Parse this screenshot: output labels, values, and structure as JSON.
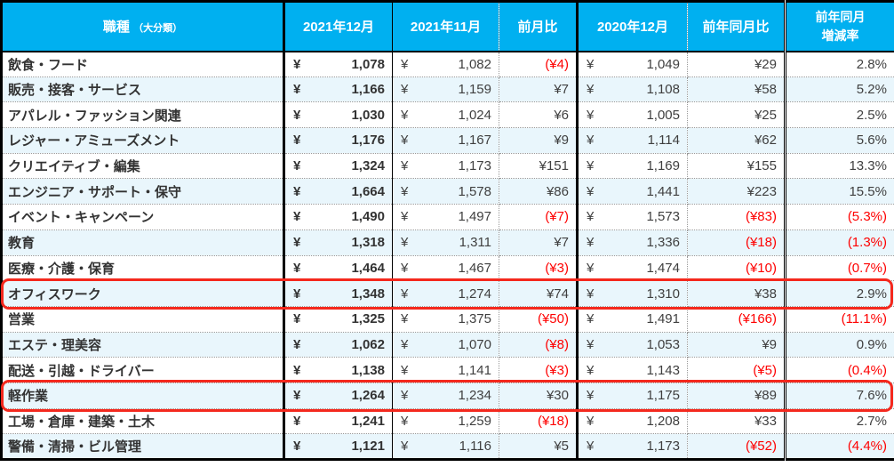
{
  "table": {
    "currency_symbol": "¥",
    "header": {
      "job": "職種",
      "job_sub": "（大分類）",
      "dec2021": "2021年12月",
      "nov2021": "2021年11月",
      "mom": "前月比",
      "dec2020": "2020年12月",
      "yoy": "前年同月比",
      "yoy_rate_line1": "前年同月",
      "yoy_rate_line2": "増減率"
    },
    "rows": [
      {
        "name": "飲食・フード",
        "dec2021": "1,078",
        "nov2021": "1,082",
        "mom": "(¥4)",
        "dec2020": "1,049",
        "yoy": "¥29",
        "rate": "2.8%",
        "highlight": false
      },
      {
        "name": "販売・接客・サービス",
        "dec2021": "1,166",
        "nov2021": "1,159",
        "mom": "¥7",
        "dec2020": "1,108",
        "yoy": "¥58",
        "rate": "5.2%",
        "highlight": false
      },
      {
        "name": "アパレル・ファッション関連",
        "dec2021": "1,030",
        "nov2021": "1,024",
        "mom": "¥6",
        "dec2020": "1,005",
        "yoy": "¥25",
        "rate": "2.5%",
        "highlight": false
      },
      {
        "name": "レジャー・アミューズメント",
        "dec2021": "1,176",
        "nov2021": "1,167",
        "mom": "¥9",
        "dec2020": "1,114",
        "yoy": "¥62",
        "rate": "5.6%",
        "highlight": false
      },
      {
        "name": "クリエイティブ・編集",
        "dec2021": "1,324",
        "nov2021": "1,173",
        "mom": "¥151",
        "dec2020": "1,169",
        "yoy": "¥155",
        "rate": "13.3%",
        "highlight": false
      },
      {
        "name": "エンジニア・サポート・保守",
        "dec2021": "1,664",
        "nov2021": "1,578",
        "mom": "¥86",
        "dec2020": "1,441",
        "yoy": "¥223",
        "rate": "15.5%",
        "highlight": false
      },
      {
        "name": "イベント・キャンペーン",
        "dec2021": "1,490",
        "nov2021": "1,497",
        "mom": "(¥7)",
        "dec2020": "1,573",
        "yoy": "(¥83)",
        "rate": "(5.3%)",
        "highlight": false
      },
      {
        "name": "教育",
        "dec2021": "1,318",
        "nov2021": "1,311",
        "mom": "¥7",
        "dec2020": "1,336",
        "yoy": "(¥18)",
        "rate": "(1.3%)",
        "highlight": false
      },
      {
        "name": "医療・介護・保育",
        "dec2021": "1,464",
        "nov2021": "1,467",
        "mom": "(¥3)",
        "dec2020": "1,474",
        "yoy": "(¥10)",
        "rate": "(0.7%)",
        "highlight": false
      },
      {
        "name": "オフィスワーク",
        "dec2021": "1,348",
        "nov2021": "1,274",
        "mom": "¥74",
        "dec2020": "1,310",
        "yoy": "¥38",
        "rate": "2.9%",
        "highlight": true
      },
      {
        "name": "営業",
        "dec2021": "1,325",
        "nov2021": "1,375",
        "mom": "(¥50)",
        "dec2020": "1,491",
        "yoy": "(¥166)",
        "rate": "(11.1%)",
        "highlight": false
      },
      {
        "name": "エステ・理美容",
        "dec2021": "1,062",
        "nov2021": "1,070",
        "mom": "(¥8)",
        "dec2020": "1,053",
        "yoy": "¥9",
        "rate": "0.9%",
        "highlight": false
      },
      {
        "name": "配送・引越・ドライバー",
        "dec2021": "1,138",
        "nov2021": "1,141",
        "mom": "(¥3)",
        "dec2020": "1,143",
        "yoy": "(¥5)",
        "rate": "(0.4%)",
        "highlight": false
      },
      {
        "name": "軽作業",
        "dec2021": "1,264",
        "nov2021": "1,234",
        "mom": "¥30",
        "dec2020": "1,175",
        "yoy": "¥89",
        "rate": "7.6%",
        "highlight": true
      },
      {
        "name": "工場・倉庫・建築・土木",
        "dec2021": "1,241",
        "nov2021": "1,259",
        "mom": "(¥18)",
        "dec2020": "1,208",
        "yoy": "¥33",
        "rate": "2.7%",
        "highlight": false
      },
      {
        "name": "警備・清掃・ビル管理",
        "dec2021": "1,121",
        "nov2021": "1,116",
        "mom": "¥5",
        "dec2020": "1,173",
        "yoy": "(¥52)",
        "rate": "(4.4%)",
        "highlight": false
      }
    ]
  },
  "colors": {
    "header_bg": "#00b0f0",
    "alt_row_bg": "#e9f6fc",
    "text": "#3f3f3f",
    "negative_text": "#fe0000",
    "highlight_border": "#f4281d",
    "grid_dotted": "#999999",
    "grid_solid": "#000000"
  },
  "chart_data": {
    "type": "table",
    "columns": [
      "職種（大分類）",
      "2021年12月",
      "2021年11月",
      "前月比",
      "2020年12月",
      "前年同月比",
      "前年同月増減率"
    ],
    "unit": "¥",
    "rows": [
      [
        "飲食・フード",
        1078,
        1082,
        -4,
        1049,
        29,
        2.8
      ],
      [
        "販売・接客・サービス",
        1166,
        1159,
        7,
        1108,
        58,
        5.2
      ],
      [
        "アパレル・ファッション関連",
        1030,
        1024,
        6,
        1005,
        25,
        2.5
      ],
      [
        "レジャー・アミューズメント",
        1176,
        1167,
        9,
        1114,
        62,
        5.6
      ],
      [
        "クリエイティブ・編集",
        1324,
        1173,
        151,
        1169,
        155,
        13.3
      ],
      [
        "エンジニア・サポート・保守",
        1664,
        1578,
        86,
        1441,
        223,
        15.5
      ],
      [
        "イベント・キャンペーン",
        1490,
        1497,
        -7,
        1573,
        -83,
        -5.3
      ],
      [
        "教育",
        1318,
        1311,
        7,
        1336,
        -18,
        -1.3
      ],
      [
        "医療・介護・保育",
        1464,
        1467,
        -3,
        1474,
        -10,
        -0.7
      ],
      [
        "オフィスワーク",
        1348,
        1274,
        74,
        1310,
        38,
        2.9
      ],
      [
        "営業",
        1325,
        1375,
        -50,
        1491,
        -166,
        -11.1
      ],
      [
        "エステ・理美容",
        1062,
        1070,
        -8,
        1053,
        9,
        0.9
      ],
      [
        "配送・引越・ドライバー",
        1138,
        1141,
        -3,
        1143,
        -5,
        -0.4
      ],
      [
        "軽作業",
        1264,
        1234,
        30,
        1175,
        89,
        7.6
      ],
      [
        "工場・倉庫・建築・土木",
        1241,
        1259,
        -18,
        1208,
        33,
        2.7
      ],
      [
        "警備・清掃・ビル管理",
        1121,
        1116,
        5,
        1173,
        -52,
        -4.4
      ]
    ],
    "highlighted_rows": [
      "オフィスワーク",
      "軽作業"
    ],
    "notes": "negative values shown in red parentheses; rate column is percent"
  }
}
